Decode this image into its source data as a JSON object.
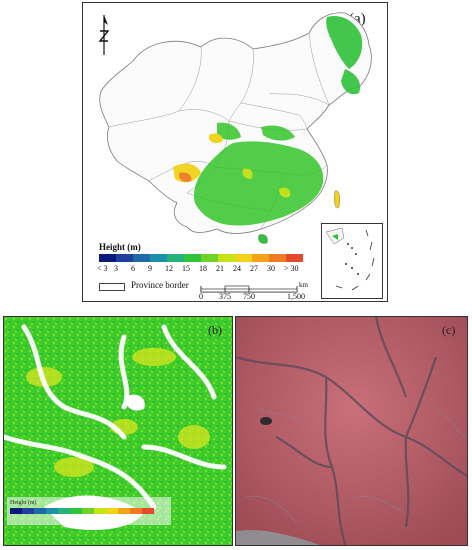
{
  "panel_a": {
    "label": "(a)",
    "legend": {
      "title": "Height (m)",
      "classes": [
        {
          "color": "#0b1a7a"
        },
        {
          "color": "#1f3f9a"
        },
        {
          "color": "#1f6aa6"
        },
        {
          "color": "#1e8fa8"
        },
        {
          "color": "#25b17a"
        },
        {
          "color": "#2fc23a"
        },
        {
          "color": "#6fd22a"
        },
        {
          "color": "#c8e21a"
        },
        {
          "color": "#f2d21a"
        },
        {
          "color": "#f3a41c"
        },
        {
          "color": "#ee7b22"
        },
        {
          "color": "#e24a2a"
        }
      ],
      "tick_labels": [
        "< 3",
        "3",
        "6",
        "9",
        "12",
        "15",
        "18",
        "21",
        "24",
        "27",
        "30",
        "> 30"
      ]
    },
    "province_border_label": "Province border",
    "scale": {
      "unit": "km",
      "ticks": [
        "0",
        "375",
        "750",
        "1,500"
      ]
    }
  },
  "panel_b": {
    "label": "(b)",
    "legend_title": "Height (m)"
  },
  "panel_c": {
    "label": "(c)"
  }
}
